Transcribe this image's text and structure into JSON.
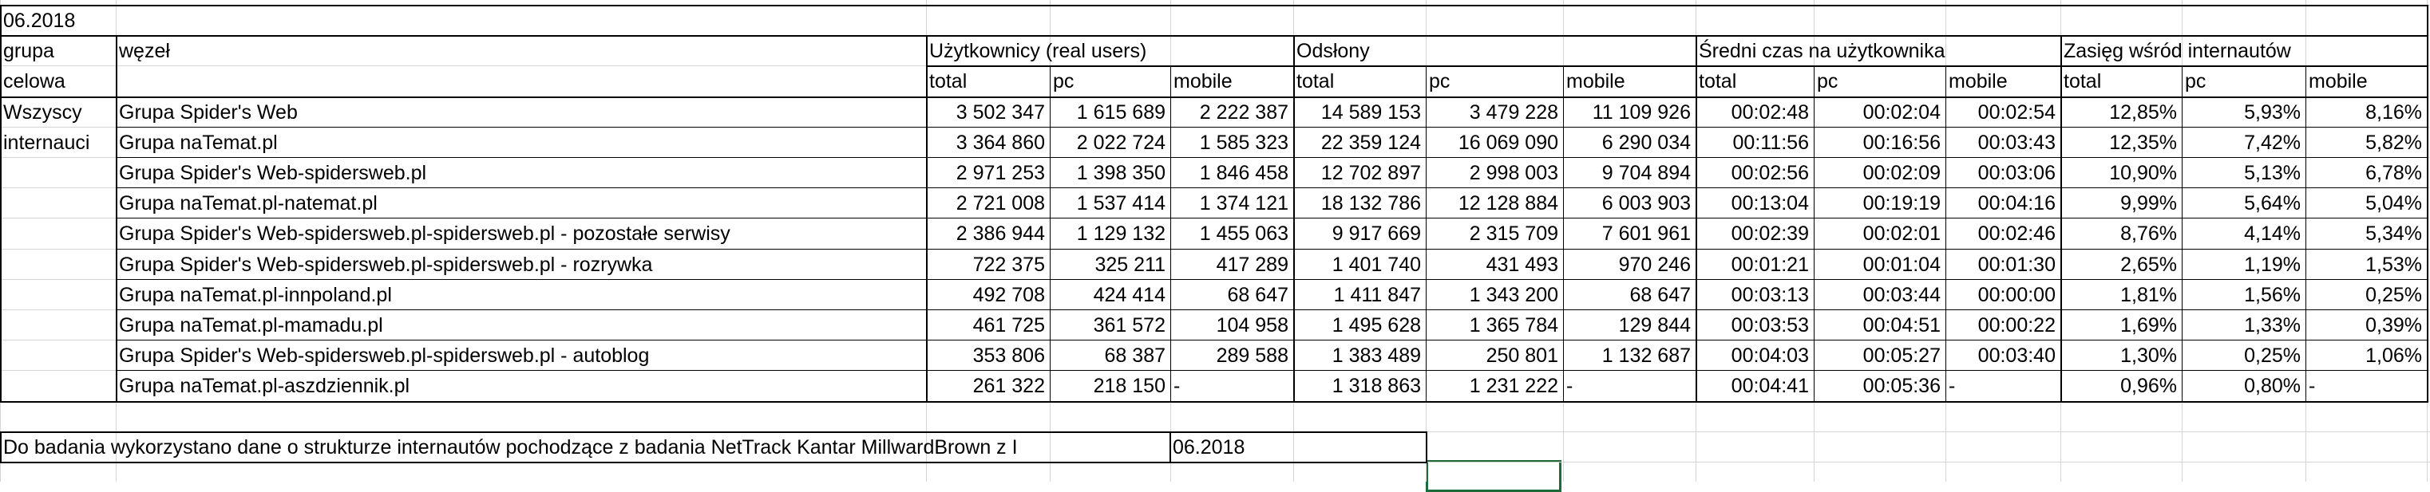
{
  "sheet": {
    "period_cell": "06.2018",
    "target_group_label": [
      "grupa",
      "celowa"
    ],
    "node_label": "węzeł",
    "group_headers": [
      "Użytkownicy (real users)",
      "Odsłony",
      "Średni czas na użytkownika",
      "Zasięg wśród internautów"
    ],
    "sub_headers": [
      "total",
      "pc",
      "mobile",
      "total",
      "pc",
      "mobile",
      "total",
      "pc",
      "mobile",
      "total",
      "pc",
      "mobile"
    ],
    "target_group_values": [
      "Wszyscy",
      "internauci"
    ],
    "rows": [
      [
        "Grupa Spider's Web",
        "3 502 347",
        "1 615 689",
        "2 222 387",
        "14 589 153",
        "3 479 228",
        "11 109 926",
        "00:02:48",
        "00:02:04",
        "00:02:54",
        "12,85%",
        "5,93%",
        "8,16%"
      ],
      [
        "Grupa naTemat.pl",
        "3 364 860",
        "2 022 724",
        "1 585 323",
        "22 359 124",
        "16 069 090",
        "6 290 034",
        "00:11:56",
        "00:16:56",
        "00:03:43",
        "12,35%",
        "7,42%",
        "5,82%"
      ],
      [
        "Grupa Spider's Web-spidersweb.pl",
        "2 971 253",
        "1 398 350",
        "1 846 458",
        "12 702 897",
        "2 998 003",
        "9 704 894",
        "00:02:56",
        "00:02:09",
        "00:03:06",
        "10,90%",
        "5,13%",
        "6,78%"
      ],
      [
        "Grupa naTemat.pl-natemat.pl",
        "2 721 008",
        "1 537 414",
        "1 374 121",
        "18 132 786",
        "12 128 884",
        "6 003 903",
        "00:13:04",
        "00:19:19",
        "00:04:16",
        "9,99%",
        "5,64%",
        "5,04%"
      ],
      [
        "Grupa Spider's Web-spidersweb.pl-spidersweb.pl - pozostałe serwisy",
        "2 386 944",
        "1 129 132",
        "1 455 063",
        "9 917 669",
        "2 315 709",
        "7 601 961",
        "00:02:39",
        "00:02:01",
        "00:02:46",
        "8,76%",
        "4,14%",
        "5,34%"
      ],
      [
        "Grupa Spider's Web-spidersweb.pl-spidersweb.pl - rozrywka",
        "722 375",
        "325 211",
        "417 289",
        "1 401 740",
        "431 493",
        "970 246",
        "00:01:21",
        "00:01:04",
        "00:01:30",
        "2,65%",
        "1,19%",
        "1,53%"
      ],
      [
        "Grupa naTemat.pl-innpoland.pl",
        "492 708",
        "424 414",
        "68 647",
        "1 411 847",
        "1 343 200",
        "68 647",
        "00:03:13",
        "00:03:44",
        "00:00:00",
        "1,81%",
        "1,56%",
        "0,25%"
      ],
      [
        "Grupa naTemat.pl-mamadu.pl",
        "461 725",
        "361 572",
        "104 958",
        "1 495 628",
        "1 365 784",
        "129 844",
        "00:03:53",
        "00:04:51",
        "00:00:22",
        "1,69%",
        "1,33%",
        "0,39%"
      ],
      [
        "Grupa Spider's Web-spidersweb.pl-spidersweb.pl - autoblog",
        "353 806",
        "68 387",
        "289 588",
        "1 383 489",
        "250 801",
        "1 132 687",
        "00:04:03",
        "00:05:27",
        "00:03:40",
        "1,30%",
        "0,25%",
        "1,06%"
      ],
      [
        "Grupa naTemat.pl-aszdziennik.pl",
        "261 322",
        "218 150",
        "-",
        "1 318 863",
        "1 231 222",
        "-",
        "00:04:41",
        "00:05:36",
        "-",
        "0,96%",
        "0,80%",
        "-"
      ]
    ],
    "footnote": "Do badania wykorzystano dane o strukturze internautów pochodzące z badania NetTrack Kantar MillwardBrown z I",
    "footnote_period": "06.2018"
  }
}
